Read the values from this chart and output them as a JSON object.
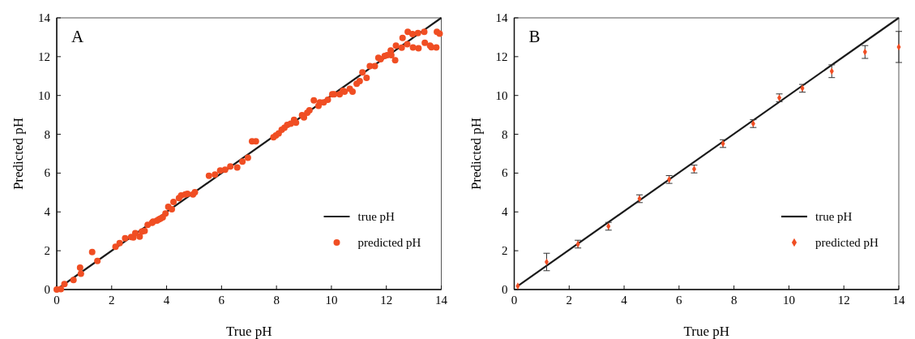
{
  "chart_data": [
    {
      "type": "scatter",
      "title": "A",
      "xlabel": "True pH",
      "ylabel": "Predicted pH",
      "xlim": [
        0,
        14
      ],
      "ylim": [
        0,
        14
      ],
      "xticks": [
        0,
        2,
        4,
        6,
        8,
        10,
        12,
        14
      ],
      "yticks": [
        0,
        2,
        4,
        6,
        8,
        10,
        12,
        14
      ],
      "legend": "bottom right",
      "series": [
        {
          "name": "true pH",
          "type": "line",
          "color": "#1a1a1a",
          "line_style": "solid",
          "marker": "none",
          "x": [
            0,
            14
          ],
          "values": [
            0,
            14
          ]
        },
        {
          "name": "predicted pH",
          "color": "#f04e23",
          "marker": "circle",
          "x": [
            0,
            0.15,
            0.28,
            0.61,
            0.85,
            0.88,
            1.29,
            1.48,
            2.14,
            2.29,
            2.49,
            2.71,
            2.79,
            2.86,
            3.02,
            3.1,
            3.2,
            3.31,
            3.47,
            3.51,
            3.65,
            3.72,
            3.78,
            3.86,
            3.96,
            4.06,
            4.19,
            4.25,
            4.45,
            4.53,
            4.68,
            4.76,
            4.96,
            5.03,
            5.54,
            5.76,
            5.95,
            6.13,
            6.32,
            6.57,
            6.76,
            6.96,
            7.11,
            7.25,
            7.89,
            7.98,
            8.08,
            8.19,
            8.29,
            8.39,
            8.52,
            8.64,
            8.71,
            8.93,
            9.0,
            9.12,
            9.2,
            9.36,
            9.53,
            9.58,
            9.72,
            9.87,
            10.03,
            10.1,
            10.3,
            10.42,
            10.48,
            10.67,
            10.77,
            10.92,
            11.03,
            11.13,
            11.28,
            11.4,
            11.58,
            11.71,
            11.79,
            11.94,
            12.03,
            12.16,
            12.18,
            12.32,
            12.35,
            12.56,
            12.59,
            12.76,
            12.78,
            12.95,
            12.97,
            13.15,
            13.17,
            13.38,
            13.4,
            13.59,
            13.64,
            13.82,
            13.84,
            13.94
          ],
          "values": [
            0,
            0.02,
            0.28,
            0.49,
            1.13,
            0.82,
            1.93,
            1.47,
            2.2,
            2.39,
            2.64,
            2.71,
            2.68,
            2.9,
            2.73,
            2.99,
            3.02,
            3.33,
            3.44,
            3.5,
            3.55,
            3.62,
            3.66,
            3.72,
            3.92,
            4.26,
            4.14,
            4.51,
            4.71,
            4.85,
            4.9,
            4.93,
            4.9,
            5.02,
            5.86,
            5.92,
            6.13,
            6.17,
            6.34,
            6.29,
            6.59,
            6.79,
            7.64,
            7.64,
            7.85,
            7.94,
            8.05,
            8.23,
            8.34,
            8.48,
            8.55,
            8.74,
            8.6,
            8.99,
            8.87,
            9.11,
            9.24,
            9.75,
            9.47,
            9.64,
            9.64,
            9.78,
            10.06,
            10.06,
            10.06,
            10.24,
            10.2,
            10.34,
            10.2,
            10.6,
            10.74,
            11.19,
            10.91,
            11.51,
            11.51,
            11.94,
            11.87,
            12.04,
            12.08,
            12.32,
            12.08,
            11.82,
            12.57,
            12.46,
            12.97,
            12.64,
            13.28,
            13.16,
            12.47,
            13.22,
            12.43,
            13.28,
            12.72,
            12.57,
            12.49,
            12.47,
            13.28,
            13.19
          ]
        }
      ]
    },
    {
      "type": "scatter",
      "title": "B",
      "xlabel": "True pH",
      "ylabel": "Predicted pH",
      "xlim": [
        0,
        14
      ],
      "ylim": [
        0,
        14
      ],
      "xticks": [
        0,
        2,
        4,
        6,
        8,
        10,
        12,
        14
      ],
      "yticks": [
        0,
        2,
        4,
        6,
        8,
        10,
        12,
        14
      ],
      "legend": "bottom right",
      "series": [
        {
          "name": "true pH",
          "type": "line",
          "color": "#1a1a1a",
          "line_style": "solid",
          "marker": "none",
          "x": [
            0.1,
            14
          ],
          "values": [
            0.15,
            14
          ]
        },
        {
          "name": "predicted pH",
          "color": "#f04e23",
          "marker": "diamond",
          "x": [
            0.13,
            1.18,
            2.32,
            3.43,
            4.56,
            5.64,
            6.55,
            7.6,
            8.7,
            9.65,
            10.49,
            11.56,
            12.77,
            14
          ],
          "values": [
            0.18,
            1.42,
            2.34,
            3.26,
            4.68,
            5.67,
            6.21,
            7.52,
            8.55,
            9.88,
            10.37,
            11.25,
            12.24,
            12.5
          ],
          "errors": [
            null,
            0.45,
            0.2,
            0.2,
            0.2,
            0.2,
            0.2,
            0.2,
            0.2,
            0.2,
            0.2,
            0.33,
            0.33,
            0.8
          ]
        }
      ]
    }
  ]
}
